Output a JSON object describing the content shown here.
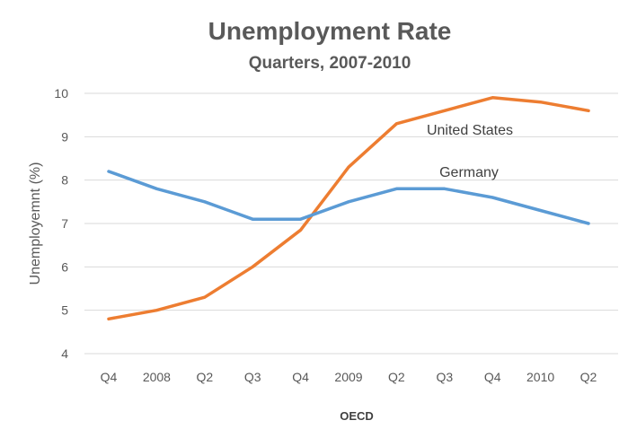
{
  "chart_data": {
    "type": "line",
    "title": "Unemployment Rate",
    "subtitle": "Quarters, 2007-2010",
    "xlabel": "OECD",
    "ylabel": "Unemployemnt (%)",
    "categories": [
      "Q4",
      "2008",
      "Q2",
      "Q3",
      "Q4",
      "2009",
      "Q2",
      "Q3",
      "Q4",
      "2010",
      "Q2"
    ],
    "ylim": [
      4,
      10
    ],
    "yticks": [
      4,
      5,
      6,
      7,
      8,
      9,
      10
    ],
    "grid": true,
    "legend": "inline labels",
    "series": [
      {
        "name": "United States",
        "color": "#ed7d31",
        "values": [
          4.8,
          5.0,
          5.3,
          6.0,
          6.85,
          8.3,
          9.3,
          9.6,
          9.9,
          9.8,
          9.6
        ]
      },
      {
        "name": "Germany",
        "color": "#5b9bd5",
        "values": [
          8.2,
          7.8,
          7.5,
          7.1,
          7.1,
          7.5,
          7.8,
          7.8,
          7.6,
          7.3,
          7.0
        ]
      }
    ]
  }
}
